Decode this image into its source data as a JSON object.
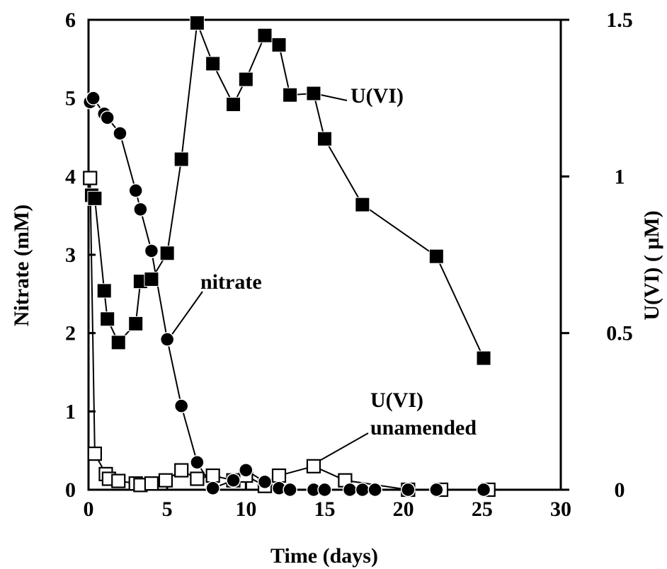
{
  "chart_data": {
    "type": "scatter",
    "xlabel": "Time (days)",
    "ylabel_left": "Nitrate (mM)",
    "ylabel_right": "U(VI) ( μM)",
    "xlim": [
      0,
      30
    ],
    "ylim_left": [
      0,
      6
    ],
    "ylim_right": [
      0,
      1.5
    ],
    "x_ticks": [
      "0",
      "5",
      "10",
      "15",
      "20",
      "25",
      "30"
    ],
    "y_left_ticks": [
      "0",
      "1",
      "2",
      "3",
      "4",
      "5",
      "6"
    ],
    "y_right_ticks": [
      "0",
      "0.5",
      "1",
      "1.5"
    ],
    "grid": false,
    "series": [
      {
        "name": "U(VI)",
        "axis": "right",
        "marker": "filled-square",
        "x": [
          0.2,
          0.4,
          1.0,
          1.2,
          1.9,
          3.0,
          3.3,
          4.0,
          5.0,
          5.9,
          6.9,
          7.9,
          9.2,
          10.0,
          11.2,
          12.1,
          12.8,
          14.3,
          15.0,
          17.4,
          22.1,
          25.1
        ],
        "y": [
          0.94,
          0.93,
          0.635,
          0.545,
          0.47,
          0.53,
          0.665,
          0.672,
          0.755,
          1.055,
          1.49,
          1.36,
          1.23,
          1.31,
          1.45,
          1.42,
          1.26,
          1.265,
          1.12,
          0.91,
          0.745,
          0.42
        ]
      },
      {
        "name": "nitrate",
        "axis": "left",
        "marker": "filled-circle",
        "x": [
          0.1,
          0.3,
          1.0,
          1.2,
          2.0,
          3.0,
          3.3,
          4.0,
          5.0,
          5.9,
          6.9,
          7.9,
          9.2,
          10.0,
          11.2,
          12.1,
          12.8,
          14.3,
          15.0,
          16.6,
          17.4,
          18.2,
          20.3,
          22.1,
          25.1
        ],
        "y": [
          4.95,
          5.0,
          4.8,
          4.75,
          4.55,
          3.82,
          3.58,
          3.05,
          1.92,
          1.07,
          0.35,
          0.02,
          0.12,
          0.25,
          0.1,
          0.02,
          0.0,
          0.0,
          0.0,
          0.0,
          0.0,
          0.0,
          0.0,
          0.0,
          0.0
        ]
      },
      {
        "name": "U(VI) unamended",
        "axis": "right",
        "marker": "open-square",
        "x": [
          0.1,
          0.4,
          1.1,
          1.3,
          1.9,
          3.0,
          3.3,
          4.0,
          4.9,
          5.9,
          6.9,
          7.9,
          9.2,
          10.0,
          11.2,
          12.1,
          14.3,
          16.3,
          20.3,
          22.4,
          25.4
        ],
        "y": [
          0.995,
          0.115,
          0.05,
          0.035,
          0.028,
          0.02,
          0.015,
          0.02,
          0.03,
          0.062,
          0.035,
          0.045,
          0.03,
          0.045,
          0.012,
          0.045,
          0.075,
          0.03,
          0.0,
          0.0,
          0.0
        ]
      }
    ],
    "annotations": [
      {
        "text": "U(VI)",
        "points_to": "U(VI)"
      },
      {
        "text": "nitrate",
        "points_to": "nitrate"
      },
      {
        "text": "U(VI)",
        "points_to": "U(VI) unamended"
      },
      {
        "text": "unamended",
        "points_to": "U(VI) unamended"
      }
    ]
  }
}
